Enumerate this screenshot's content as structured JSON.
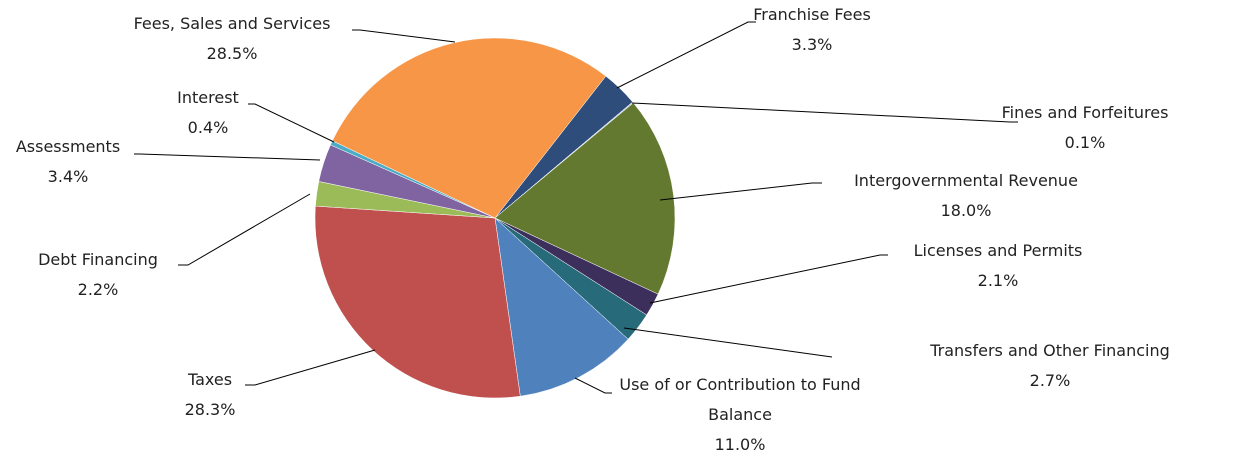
{
  "chart_data": {
    "type": "pie",
    "categories": [
      "Franchise Fees",
      "Fines and Forfeitures",
      "Intergovernmental Revenue",
      "Licenses and Permits",
      "Transfers and Other Financing",
      "Use of or Contribution to Fund Balance",
      "Taxes",
      "Debt Financing",
      "Assessments",
      "Interest",
      "Fees, Sales and Services"
    ],
    "values": [
      3.3,
      0.1,
      18.0,
      2.1,
      2.7,
      11.0,
      28.3,
      2.2,
      3.4,
      0.4,
      28.5
    ],
    "value_labels": [
      "3.3%",
      "0.1%",
      "18.0%",
      "2.1%",
      "2.7%",
      "11.0%",
      "28.3%",
      "2.2%",
      "3.4%",
      "0.4%",
      "28.5%"
    ],
    "colors": [
      "#2e4d7b",
      "#b9c7e0",
      "#63792f",
      "#3d2f5c",
      "#276a7a",
      "#4f81bd",
      "#c0504d",
      "#9bbb59",
      "#8064a2",
      "#4bacc6",
      "#f79646"
    ]
  }
}
